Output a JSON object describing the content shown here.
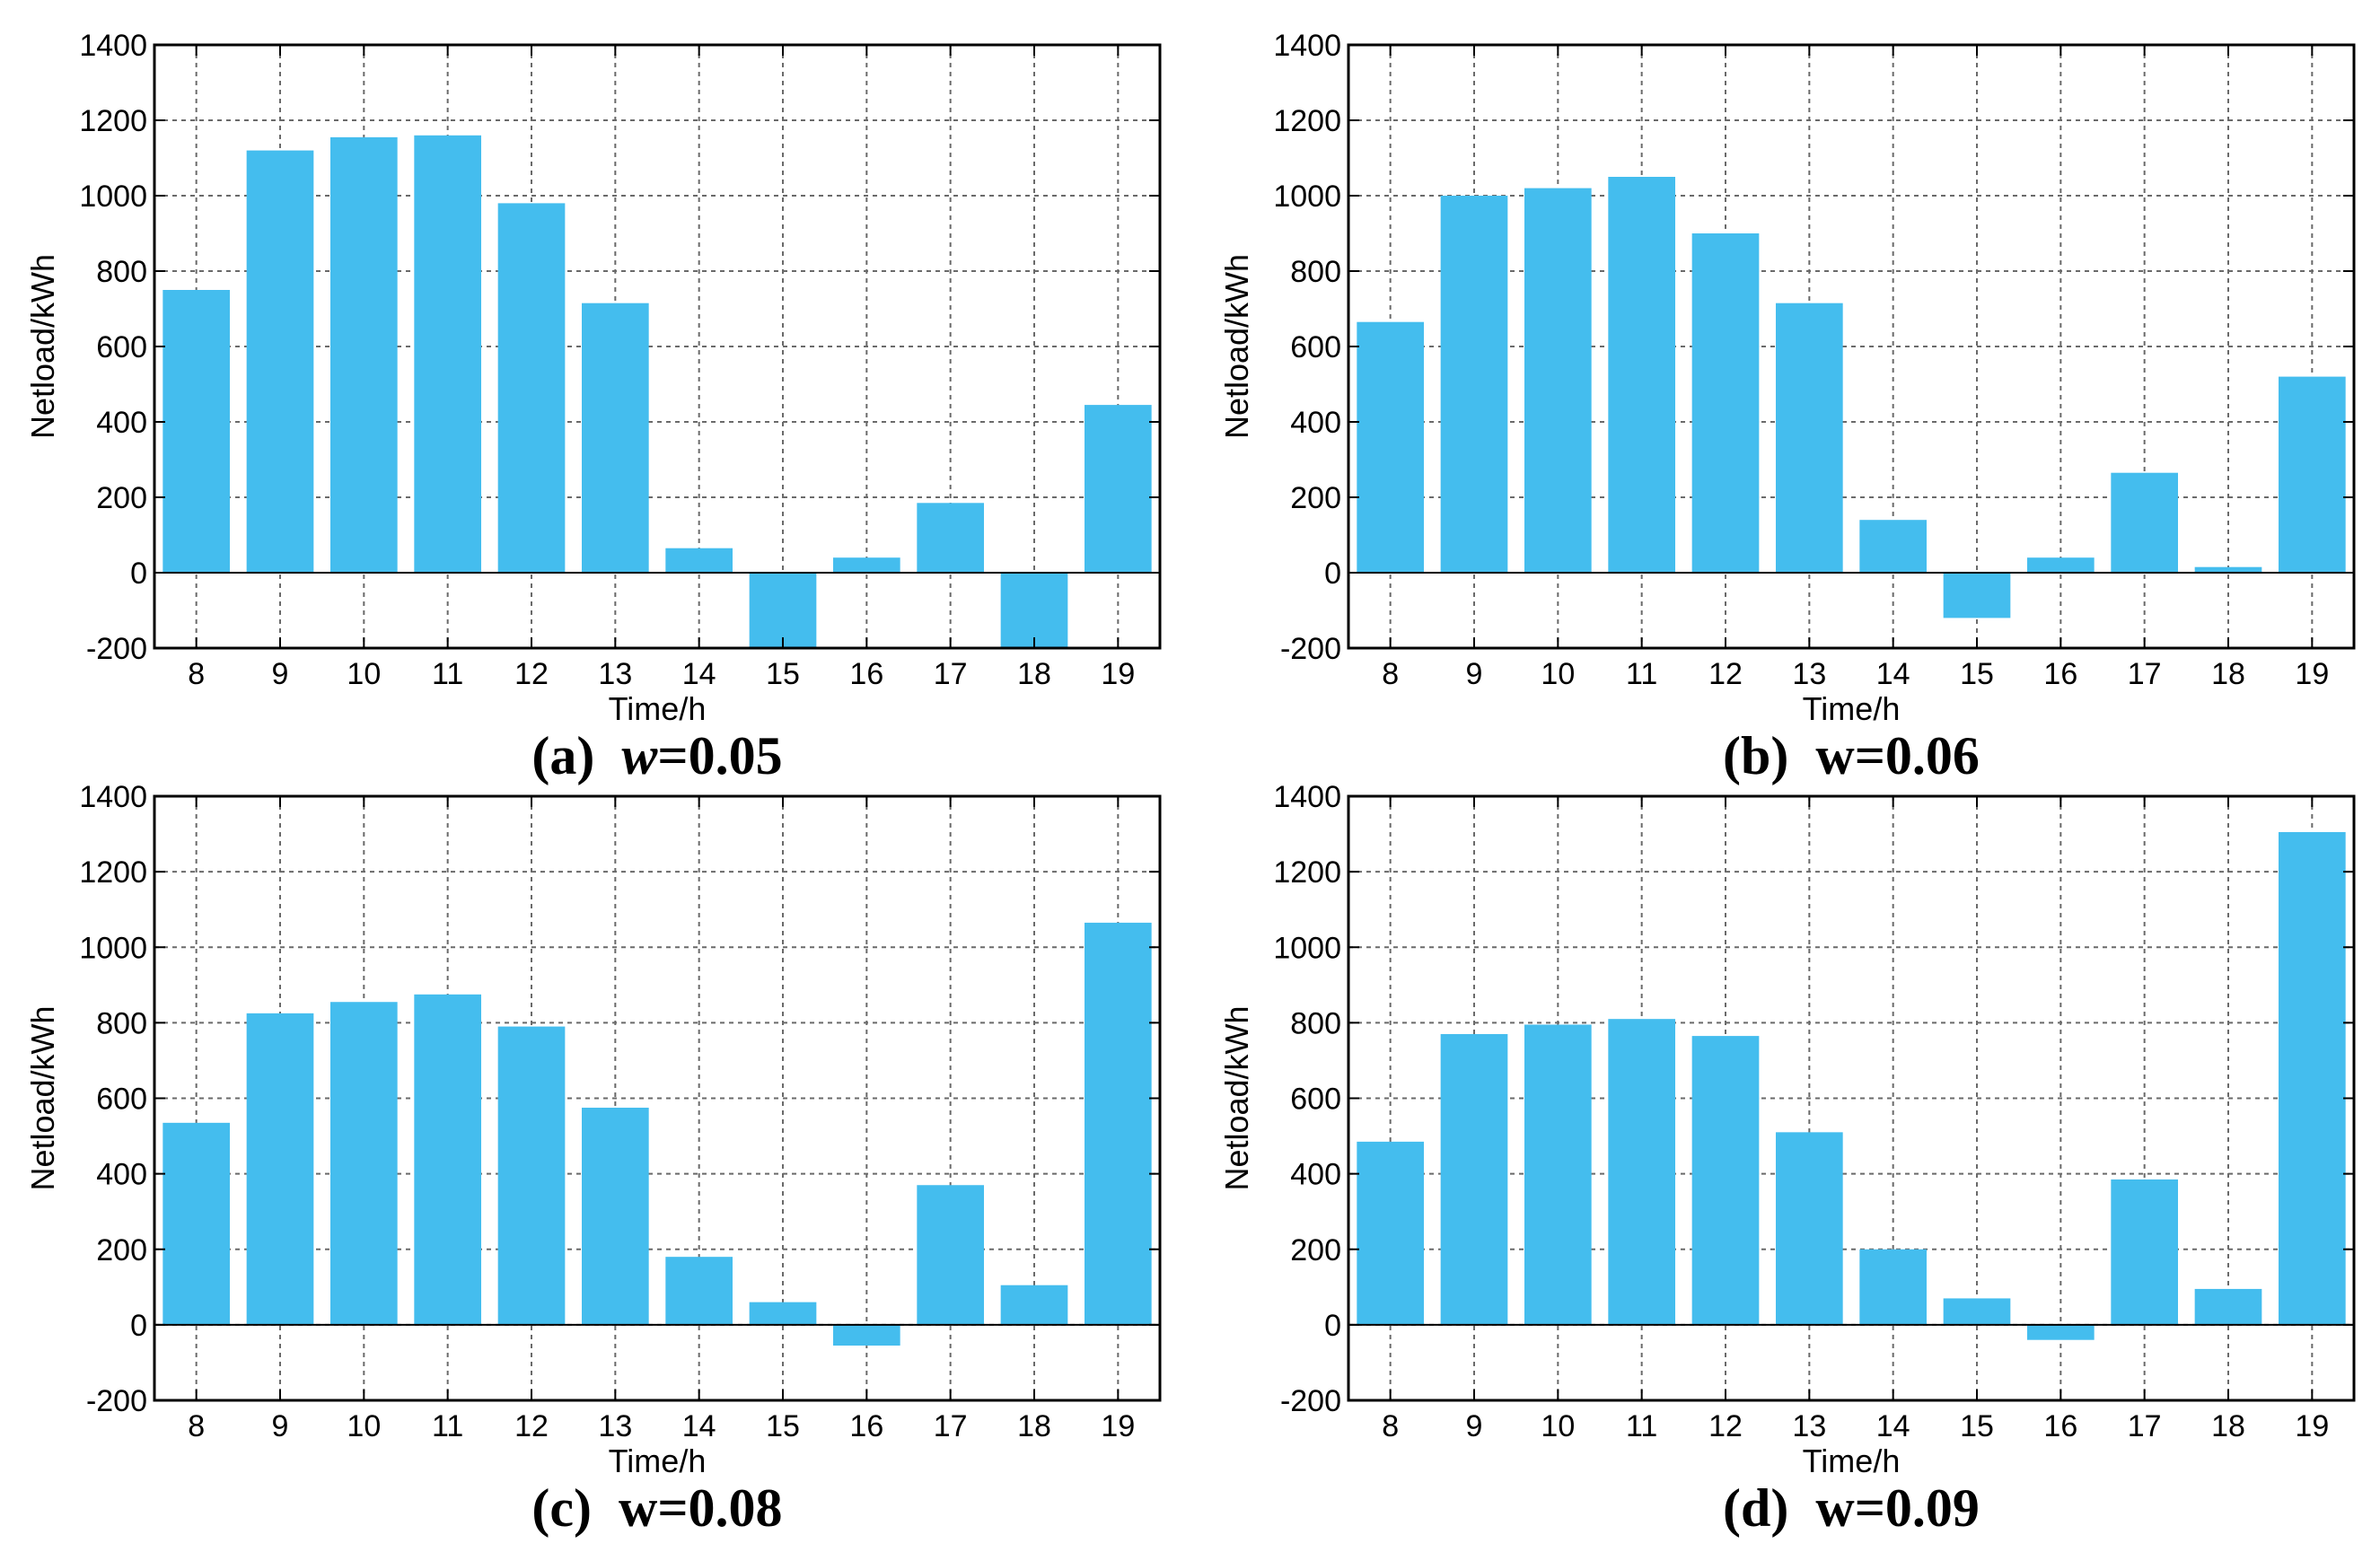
{
  "chart_data": [
    {
      "type": "bar",
      "panel": "(a)",
      "caption_label": "(a)",
      "caption_var": "w",
      "caption_value": "=0.05",
      "caption_var_italic": true,
      "categories": [
        "8",
        "9",
        "10",
        "11",
        "12",
        "13",
        "14",
        "15",
        "16",
        "17",
        "18",
        "19"
      ],
      "values": [
        750,
        1120,
        1155,
        1160,
        980,
        715,
        65,
        -200,
        40,
        185,
        -200,
        445
      ],
      "xlabel": "Time/h",
      "ylabel": "Netload/kWh",
      "ylim": [
        -200,
        1400
      ],
      "yticks": [
        "-200",
        "0",
        "200",
        "400",
        "600",
        "800",
        "1000",
        "1200",
        "1400"
      ],
      "grid": true,
      "bar_color": "#44BDEE"
    },
    {
      "type": "bar",
      "panel": "(b)",
      "caption_label": "(b)",
      "caption_var": "w",
      "caption_value": "=0.06",
      "caption_var_italic": false,
      "categories": [
        "8",
        "9",
        "10",
        "11",
        "12",
        "13",
        "14",
        "15",
        "16",
        "17",
        "18",
        "19"
      ],
      "values": [
        665,
        1000,
        1020,
        1050,
        900,
        715,
        140,
        -120,
        40,
        265,
        15,
        520
      ],
      "xlabel": "Time/h",
      "ylabel": "Netload/kWh",
      "ylim": [
        -200,
        1400
      ],
      "yticks": [
        "-200",
        "0",
        "200",
        "400",
        "600",
        "800",
        "1000",
        "1200",
        "1400"
      ],
      "grid": true,
      "bar_color": "#44BDEE"
    },
    {
      "type": "bar",
      "panel": "(c)",
      "caption_label": "(c)",
      "caption_var": "w",
      "caption_value": "=0.08",
      "caption_var_italic": false,
      "categories": [
        "8",
        "9",
        "10",
        "11",
        "12",
        "13",
        "14",
        "15",
        "16",
        "17",
        "18",
        "19"
      ],
      "values": [
        535,
        825,
        855,
        875,
        790,
        575,
        180,
        60,
        -55,
        370,
        105,
        1065
      ],
      "xlabel": "Time/h",
      "ylabel": "Netload/kWh",
      "ylim": [
        -200,
        1400
      ],
      "yticks": [
        "-200",
        "0",
        "200",
        "400",
        "600",
        "800",
        "1000",
        "1200",
        "1400"
      ],
      "grid": true,
      "bar_color": "#44BDEE"
    },
    {
      "type": "bar",
      "panel": "(d)",
      "caption_label": "(d)",
      "caption_var": "w",
      "caption_value": "=0.09",
      "caption_var_italic": false,
      "categories": [
        "8",
        "9",
        "10",
        "11",
        "12",
        "13",
        "14",
        "15",
        "16",
        "17",
        "18",
        "19"
      ],
      "values": [
        485,
        770,
        795,
        810,
        765,
        510,
        200,
        70,
        -40,
        385,
        95,
        1305
      ],
      "xlabel": "Time/h",
      "ylabel": "Netload/kWh",
      "ylim": [
        -200,
        1400
      ],
      "yticks": [
        "-200",
        "0",
        "200",
        "400",
        "600",
        "800",
        "1000",
        "1200",
        "1400"
      ],
      "grid": true,
      "bar_color": "#44BDEE"
    }
  ]
}
